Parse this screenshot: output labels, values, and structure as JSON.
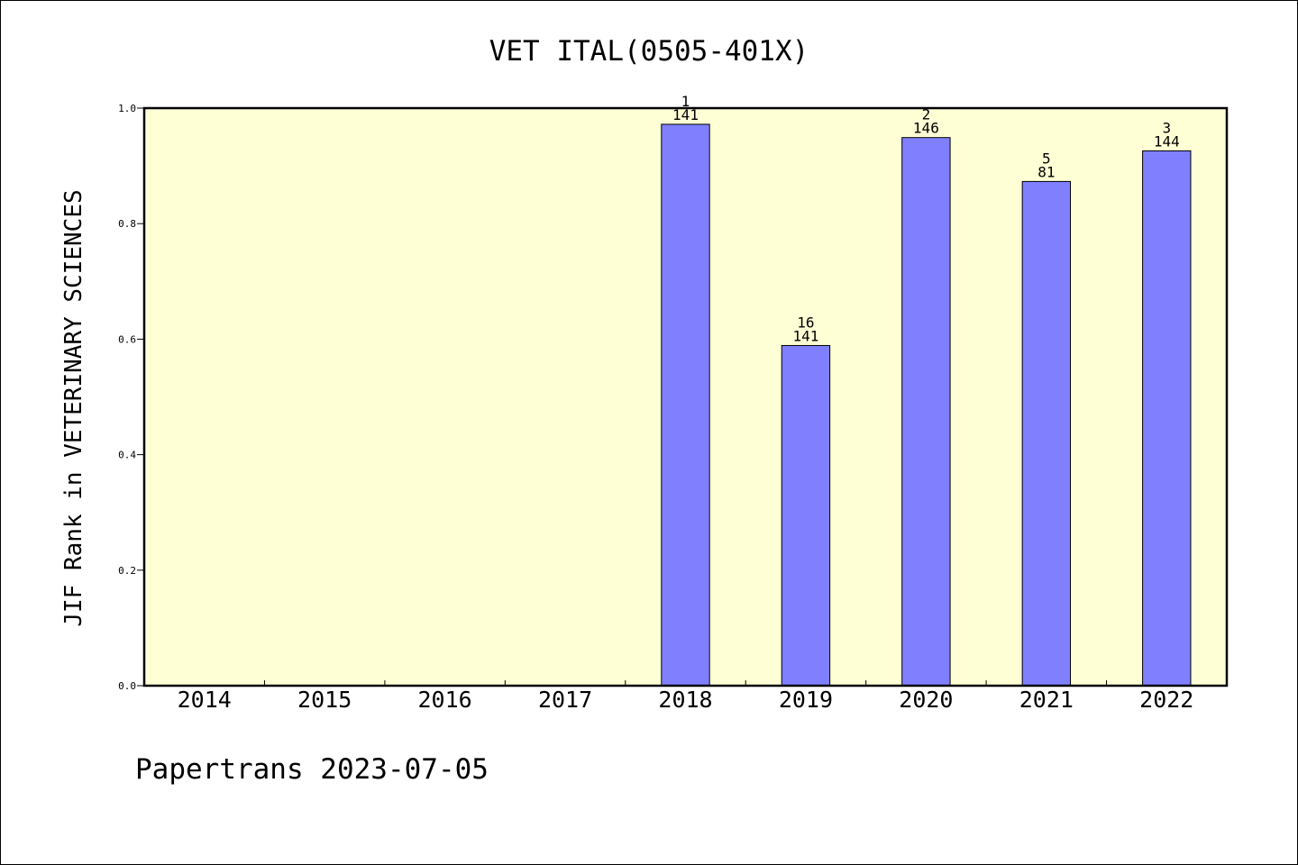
{
  "chart_data": {
    "type": "bar",
    "title": "VET ITAL(0505-401X)",
    "ylabel": "JIF Rank in VETERINARY SCIENCES",
    "xlabel": "",
    "ylim": [
      0,
      1.0
    ],
    "yticks": [
      "0.0",
      "0.2",
      "0.4",
      "0.6",
      "0.8",
      "1.0"
    ],
    "categories": [
      "2014",
      "2015",
      "2016",
      "2017",
      "2018",
      "2019",
      "2020",
      "2021",
      "2022"
    ],
    "values": [
      null,
      null,
      null,
      null,
      0.972,
      0.589,
      0.949,
      0.873,
      0.926
    ],
    "bar_labels": [
      null,
      null,
      null,
      null,
      {
        "rank": "1",
        "total": "141"
      },
      {
        "rank": "16",
        "total": "141"
      },
      {
        "rank": "2",
        "total": "146"
      },
      {
        "rank": "5",
        "total": "81"
      },
      {
        "rank": "3",
        "total": "144"
      }
    ],
    "grid": false,
    "colors": {
      "bar": "#8080ff",
      "plot_background": "#ffffd5"
    }
  },
  "footer": {
    "text": "Papertrans 2023-07-05"
  }
}
